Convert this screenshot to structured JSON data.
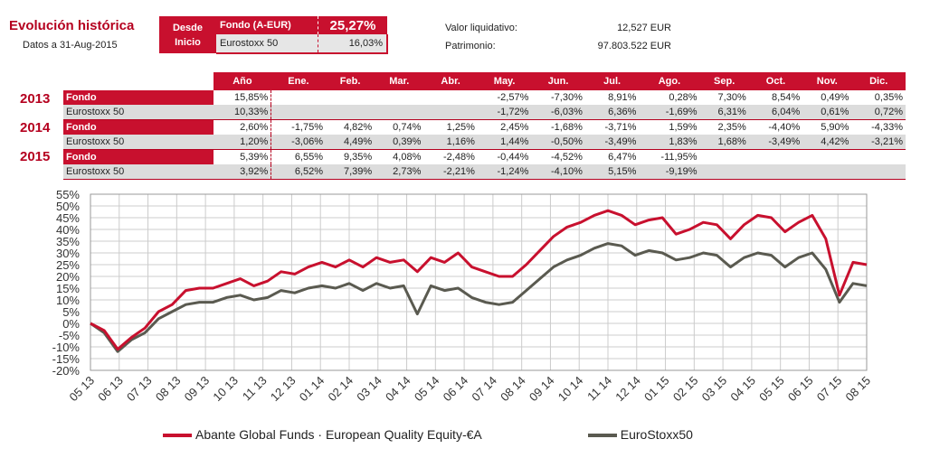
{
  "header": {
    "title": "Evolución histórica",
    "date": "Datos a  31-Aug-2015",
    "desde_inicio_1": "Desde",
    "desde_inicio_2": "Inicio",
    "fondo_label": "Fondo (A-EUR)",
    "fondo_value": "25,27%",
    "index_label": "Eurostoxx 50",
    "index_value": "16,03%",
    "valor_label": "Valor liquidativo:",
    "valor_value": "12,527 EUR",
    "patrimonio_label": "Patrimonio:",
    "patrimonio_value": "97.803.522 EUR"
  },
  "table": {
    "columns": [
      "Año",
      "Ene.",
      "Feb.",
      "Mar.",
      "Abr.",
      "May.",
      "Jun.",
      "Jul.",
      "Ago.",
      "Sep.",
      "Oct.",
      "Nov.",
      "Dic."
    ],
    "years": [
      {
        "year": "2013",
        "fondo": {
          "label": "Fondo",
          "values": [
            "15,85%",
            "",
            "",
            "",
            "",
            "-2,57%",
            "-7,30%",
            "8,91%",
            "0,28%",
            "7,30%",
            "8,54%",
            "0,49%",
            "0,35%"
          ]
        },
        "index": {
          "label": "Eurostoxx 50",
          "values": [
            "10,33%",
            "",
            "",
            "",
            "",
            "-1,72%",
            "-6,03%",
            "6,36%",
            "-1,69%",
            "6,31%",
            "6,04%",
            "0,61%",
            "0,72%"
          ]
        }
      },
      {
        "year": "2014",
        "fondo": {
          "label": "Fondo",
          "values": [
            "2,60%",
            "-1,75%",
            "4,82%",
            "0,74%",
            "1,25%",
            "2,45%",
            "-1,68%",
            "-3,71%",
            "1,59%",
            "2,35%",
            "-4,40%",
            "5,90%",
            "-4,33%"
          ]
        },
        "index": {
          "label": "Eurostoxx 50",
          "values": [
            "1,20%",
            "-3,06%",
            "4,49%",
            "0,39%",
            "1,16%",
            "1,44%",
            "-0,50%",
            "-3,49%",
            "1,83%",
            "1,68%",
            "-3,49%",
            "4,42%",
            "-3,21%"
          ]
        }
      },
      {
        "year": "2015",
        "fondo": {
          "label": "Fondo",
          "values": [
            "5,39%",
            "6,55%",
            "9,35%",
            "4,08%",
            "-2,48%",
            "-0,44%",
            "-4,52%",
            "6,47%",
            "-11,95%",
            "",
            "",
            "",
            ""
          ]
        },
        "index": {
          "label": "Eurostoxx 50",
          "values": [
            "3,92%",
            "6,52%",
            "7,39%",
            "2,73%",
            "-2,21%",
            "-1,24%",
            "-4,10%",
            "5,15%",
            "-9,19%",
            "",
            "",
            "",
            ""
          ]
        }
      }
    ]
  },
  "chart_data": {
    "type": "line",
    "ylim": [
      -20,
      55
    ],
    "yticks": [
      "55%",
      "50%",
      "45%",
      "40%",
      "35%",
      "30%",
      "25%",
      "20%",
      "15%",
      "10%",
      "5%",
      "0%",
      "-5%",
      "-10%",
      "-15%",
      "-20%"
    ],
    "xticks": [
      "05 13",
      "06 13",
      "07 13",
      "08 13",
      "09 13",
      "10 13",
      "11 13",
      "12 13",
      "01 14",
      "02 14",
      "03 14",
      "04 14",
      "05 14",
      "06 14",
      "07 14",
      "08 14",
      "09 14",
      "10 14",
      "11 14",
      "12 14",
      "01 15",
      "02 15",
      "03 15",
      "04 15",
      "05 15",
      "06 15",
      "07 15",
      "08 15"
    ],
    "grid": true,
    "legend": "bottom",
    "series": [
      {
        "name": "Abante Global Funds · European Quality Equity-€A",
        "color": "#c8102e",
        "values": [
          0,
          -3,
          -11,
          -6,
          -2,
          5,
          8,
          14,
          15,
          15,
          17,
          19,
          16,
          18,
          22,
          21,
          24,
          26,
          24,
          27,
          24,
          28,
          26,
          27,
          22,
          28,
          26,
          30,
          24,
          22,
          20,
          20,
          25,
          31,
          37,
          41,
          43,
          46,
          48,
          46,
          42,
          44,
          45,
          38,
          40,
          43,
          42,
          36,
          42,
          46,
          45,
          39,
          43,
          46,
          36,
          12,
          26,
          25
        ]
      },
      {
        "name": "EuroStoxx50",
        "color": "#5a5a50",
        "values": [
          0,
          -4,
          -12,
          -7,
          -4,
          2,
          5,
          8,
          9,
          9,
          11,
          12,
          10,
          11,
          14,
          13,
          15,
          16,
          15,
          17,
          14,
          17,
          15,
          16,
          4,
          16,
          14,
          15,
          11,
          9,
          8,
          9,
          14,
          19,
          24,
          27,
          29,
          32,
          34,
          33,
          29,
          31,
          30,
          27,
          28,
          30,
          29,
          24,
          28,
          30,
          29,
          24,
          28,
          30,
          23,
          9,
          17,
          16
        ]
      }
    ]
  }
}
